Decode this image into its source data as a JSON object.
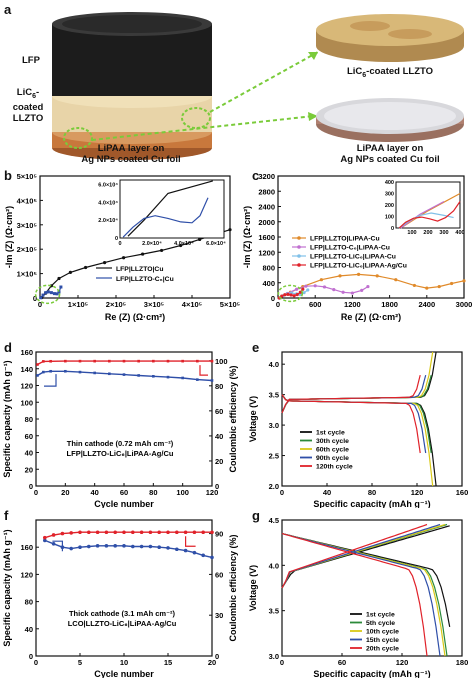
{
  "panels": {
    "a": {
      "label": "a",
      "lfp_label": "LFP",
      "llzto_label_1": "LiC",
      "llzto_sub": "6",
      "llzto_label_2": "-coated",
      "llzto_label_3": "LLZTO",
      "lipaa_1": "LiPAA layer on",
      "lipaa_2": "Ag NPs coated Cu foil",
      "lic6_top_1": "LiC",
      "lic6_top_sub": "6",
      "lic6_top_2": "-coated LLZTO",
      "lipaa_right_1": "LiPAA layer on",
      "lipaa_right_2": "Ag NPs coated Cu foil"
    },
    "b": {
      "label": "b",
      "xlabel": "Re (Z) (Ω·cm²)",
      "ylabel": "-Im (Z) (Ω·cm²)",
      "xticks": [
        "0",
        "1×10⁵",
        "2×10⁵",
        "3×10⁵",
        "4×10⁵",
        "5×10⁵"
      ],
      "yticks": [
        "0",
        "1×10⁵",
        "2×10⁵",
        "3×10⁵",
        "4×10⁵",
        "5×10⁵"
      ],
      "inset_xticks": [
        "0",
        "2.0×10⁴",
        "4.0×10⁴",
        "6.0×10⁴"
      ],
      "inset_yticks": [
        "0",
        "2.0×10⁴",
        "4.0×10⁴",
        "6.0×10⁴"
      ],
      "legend": [
        "LFP|LLZTO|Cu",
        "LFP|LLZTO-C₆|Cu"
      ]
    },
    "c": {
      "label": "c",
      "xlabel": "Re (Z) (Ω·cm²)",
      "ylabel": "-Im (Z) (Ω·cm²)",
      "xticks": [
        "0",
        "600",
        "1200",
        "1800",
        "2400",
        "3000"
      ],
      "yticks": [
        "0",
        "400",
        "800",
        "1200",
        "1600",
        "2000",
        "2400",
        "2800",
        "3200"
      ],
      "inset_xticks": [
        "0",
        "100",
        "200",
        "300",
        "400"
      ],
      "inset_yticks": [
        "0",
        "100",
        "200",
        "300",
        "400"
      ],
      "legend": [
        "LFP|LLZTO|LiPAA-Cu",
        "LFP|LLZTO-C₆|LiPAA-Cu",
        "LFP|LLZTO-LiC₆|LiPAA-Cu",
        "LFP|LLZTO-LiC₆|LiPAA-Ag/Cu"
      ]
    },
    "d": {
      "label": "d",
      "xlabel": "Cycle number",
      "ylabel": "Specific capacity (mAh g⁻¹)",
      "y2label": "Coulombic efficiency (%)",
      "xticks": [
        "0",
        "20",
        "40",
        "60",
        "80",
        "100",
        "120"
      ],
      "yticks": [
        "0",
        "20",
        "40",
        "60",
        "80",
        "100",
        "120",
        "140",
        "160"
      ],
      "y2ticks": [
        "0",
        "20",
        "40",
        "60",
        "80",
        "100"
      ],
      "ann1": "Thin cathode (0.72 mAh cm⁻²)",
      "ann2": "LFP|LLZTO-LiC₆|LiPAA-Ag/Cu"
    },
    "e": {
      "label": "e",
      "xlabel": "Specific capacity (mAh g⁻¹)",
      "ylabel": "Voltage (V)",
      "xticks": [
        "0",
        "40",
        "80",
        "120",
        "160"
      ],
      "yticks": [
        "2.0",
        "2.5",
        "3.0",
        "3.5",
        "4.0"
      ],
      "legend": [
        "1st cycle",
        "30th cycle",
        "60th cycle",
        "90th cycle",
        "120th cycle"
      ]
    },
    "f": {
      "label": "f",
      "xlabel": "Cycle number",
      "ylabel": "Specific capacity (mAh g⁻¹)",
      "y2label": "Coulombic efficiency (%)",
      "xticks": [
        "0",
        "5",
        "10",
        "15",
        "20"
      ],
      "yticks": [
        "0",
        "40",
        "80",
        "120",
        "160"
      ],
      "y2ticks": [
        "0",
        "30",
        "60",
        "90"
      ],
      "ann1": "Thick cathode (3.1 mAh cm⁻²)",
      "ann2": "LCO|LLZTO-LiC₆|LiPAA-Ag/Cu"
    },
    "g": {
      "label": "g",
      "xlabel": "Specific capacity (mAh g⁻¹)",
      "ylabel": "Voltage (V)",
      "xticks": [
        "0",
        "60",
        "120",
        "180"
      ],
      "yticks": [
        "3.0",
        "3.5",
        "4.0",
        "4.5"
      ],
      "legend": [
        "1st cycle",
        "5th cycle",
        "10th cycle",
        "15th cycle",
        "20th cycle"
      ]
    }
  },
  "colors": {
    "black": "#111111",
    "blue": "#2f4fa8",
    "red": "#e0222a",
    "orange": "#e08a2a",
    "violet": "#c070d0",
    "lightblue": "#80c0e8",
    "green": "#2c8a3a",
    "yellow": "#d8c818"
  },
  "chart_data": [
    {
      "id": "b",
      "type": "scatter",
      "xlabel": "Re (Z) (Ω·cm²)",
      "ylabel": "-Im (Z) (Ω·cm²)",
      "xlim": [
        0,
        500000
      ],
      "ylim": [
        0,
        500000
      ],
      "series": [
        {
          "name": "LFP|LLZTO|Cu",
          "color": "#111111",
          "x": [
            5000,
            15000,
            30000,
            50000,
            80000,
            120000,
            170000,
            220000,
            270000,
            320000,
            370000,
            420000,
            470000,
            500000
          ],
          "y": [
            2000,
            20000,
            50000,
            80000,
            105000,
            125000,
            145000,
            165000,
            180000,
            195000,
            215000,
            240000,
            265000,
            280000
          ]
        },
        {
          "name": "LFP|LLZTO-C₆|Cu",
          "color": "#2f4fa8",
          "x": [
            2000,
            8000,
            15000,
            22000,
            30000,
            38000,
            45000,
            50000,
            55000
          ],
          "y": [
            1000,
            12000,
            22000,
            25000,
            22000,
            18000,
            17000,
            25000,
            45000
          ]
        }
      ]
    },
    {
      "id": "c",
      "type": "scatter",
      "xlabel": "Re (Z) (Ω·cm²)",
      "ylabel": "-Im (Z) (Ω·cm²)",
      "xlim": [
        0,
        3000
      ],
      "ylim": [
        0,
        3200
      ],
      "series": [
        {
          "name": "LFP|LLZTO|LiPAA-Cu",
          "color": "#e08a2a",
          "x": [
            30,
            200,
            400,
            700,
            1000,
            1300,
            1600,
            1900,
            2200,
            2400,
            2600,
            2800,
            3000
          ],
          "y": [
            0,
            150,
            300,
            480,
            580,
            620,
            580,
            480,
            330,
            260,
            300,
            380,
            450
          ]
        },
        {
          "name": "LFP|LLZTO-C₆|LiPAA-Cu",
          "color": "#c070d0",
          "x": [
            30,
            150,
            300,
            450,
            600,
            750,
            900,
            1050,
            1200,
            1350,
            1450
          ],
          "y": [
            0,
            120,
            230,
            310,
            320,
            290,
            220,
            150,
            130,
            200,
            300
          ]
        },
        {
          "name": "LFP|LLZTO-LiC₆|LiPAA-Cu",
          "color": "#80c0e8",
          "x": [
            20,
            80,
            150,
            220,
            300,
            360,
            420,
            480
          ],
          "y": [
            0,
            60,
            110,
            130,
            110,
            90,
            140,
            210
          ]
        },
        {
          "name": "LFP|LLZTO-LiC₆|LiPAA-Ag/Cu",
          "color": "#e0222a",
          "x": [
            20,
            60,
            110,
            160,
            210,
            260,
            310,
            360,
            400
          ],
          "y": [
            0,
            50,
            85,
            95,
            80,
            60,
            90,
            150,
            230
          ]
        }
      ]
    },
    {
      "id": "d",
      "type": "scatter",
      "xlabel": "Cycle number",
      "ylabel": "Specific capacity (mAh g⁻¹)",
      "y2label": "Coulombic efficiency (%)",
      "xlim": [
        0,
        120
      ],
      "ylim": [
        0,
        160
      ],
      "y2lim": [
        0,
        107
      ],
      "series": [
        {
          "name": "capacity",
          "color": "#2f4fa8",
          "x": [
            1,
            5,
            10,
            20,
            30,
            40,
            50,
            60,
            70,
            80,
            90,
            100,
            110,
            120
          ],
          "y": [
            132,
            136,
            137,
            137,
            136,
            135,
            134,
            133,
            132,
            131,
            130,
            129,
            127,
            126
          ]
        },
        {
          "name": "efficiency",
          "color": "#e0222a",
          "axis": "y2",
          "x": [
            1,
            5,
            10,
            20,
            30,
            40,
            50,
            60,
            70,
            80,
            90,
            100,
            110,
            120
          ],
          "y": [
            97,
            99.5,
            99.6,
            99.7,
            99.7,
            99.7,
            99.7,
            99.7,
            99.7,
            99.7,
            99.7,
            99.7,
            99.7,
            99.7
          ]
        }
      ]
    },
    {
      "id": "e",
      "type": "line",
      "xlabel": "Specific capacity (mAh g⁻¹)",
      "ylabel": "Voltage (V)",
      "xlim": [
        0,
        160
      ],
      "ylim": [
        2.0,
        4.2
      ],
      "series": [
        {
          "name": "1st cycle",
          "color": "#111111",
          "cap": 137
        },
        {
          "name": "30th cycle",
          "color": "#2c8a3a",
          "cap": 136
        },
        {
          "name": "60th cycle",
          "color": "#d8c818",
          "cap": 134
        },
        {
          "name": "90th cycle",
          "color": "#2f4fa8",
          "cap": 131
        },
        {
          "name": "120th cycle",
          "color": "#e0222a",
          "cap": 126
        }
      ]
    },
    {
      "id": "f",
      "type": "scatter",
      "xlabel": "Cycle number",
      "ylabel": "Specific capacity (mAh g⁻¹)",
      "y2label": "Coulombic efficiency (%)",
      "xlim": [
        0,
        20
      ],
      "ylim": [
        0,
        200
      ],
      "y2lim": [
        0,
        100
      ],
      "series": [
        {
          "name": "capacity",
          "color": "#2f4fa8",
          "x": [
            1,
            2,
            3,
            4,
            5,
            6,
            7,
            8,
            9,
            10,
            11,
            12,
            13,
            14,
            15,
            16,
            17,
            18,
            19,
            20
          ],
          "y": [
            170,
            165,
            160,
            158,
            160,
            161,
            162,
            162,
            162,
            162,
            161,
            161,
            161,
            160,
            159,
            157,
            155,
            152,
            148,
            145
          ]
        },
        {
          "name": "efficiency",
          "color": "#e0222a",
          "axis": "y2",
          "x": [
            1,
            2,
            3,
            4,
            5,
            6,
            7,
            8,
            9,
            10,
            11,
            12,
            13,
            14,
            15,
            16,
            17,
            18,
            19,
            20
          ],
          "y": [
            87,
            89,
            90,
            90.5,
            91,
            91,
            91,
            91,
            91,
            91,
            91,
            91,
            91,
            91,
            91,
            91,
            91,
            91,
            91,
            91
          ]
        }
      ]
    },
    {
      "id": "g",
      "type": "line",
      "xlabel": "Specific capacity (mAh g⁻¹)",
      "ylabel": "Voltage (V)",
      "xlim": [
        0,
        180
      ],
      "ylim": [
        3.0,
        4.5
      ],
      "series": [
        {
          "name": "1st cycle",
          "color": "#111111",
          "cap": 172
        },
        {
          "name": "5th cycle",
          "color": "#2c8a3a",
          "cap": 165
        },
        {
          "name": "10th cycle",
          "color": "#d8c818",
          "cap": 163
        },
        {
          "name": "15th cycle",
          "color": "#2f4fa8",
          "cap": 158
        },
        {
          "name": "20th cycle",
          "color": "#e0222a",
          "cap": 145
        }
      ]
    }
  ]
}
